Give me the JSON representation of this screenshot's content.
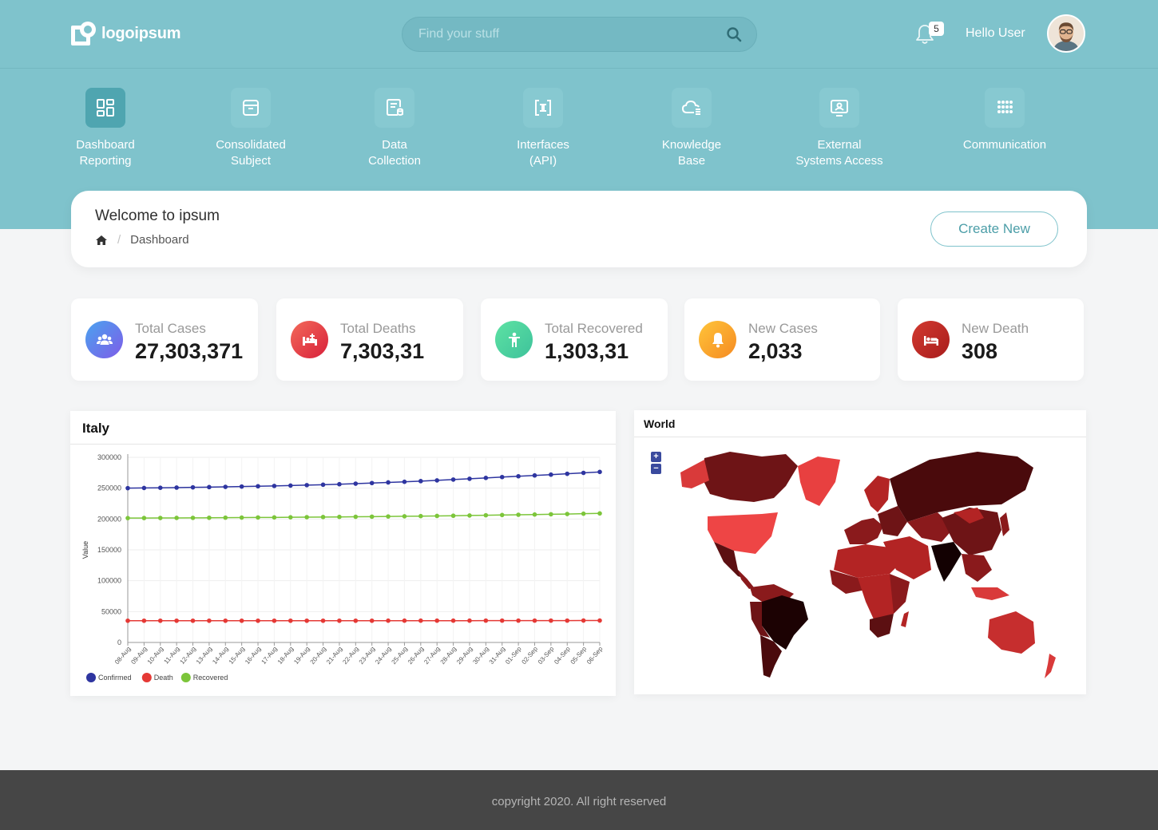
{
  "header": {
    "logo_text": "logoipsum",
    "search_placeholder": "Find your stuff",
    "notification_count": "5",
    "greeting": "Hello User"
  },
  "nav": {
    "items": [
      {
        "line1": "Dashboard",
        "line2": "Reporting",
        "icon": "dashboard-grid-icon",
        "active": true
      },
      {
        "line1": "Consolidated",
        "line2": "Subject",
        "icon": "archive-box-icon"
      },
      {
        "line1": "Data",
        "line2": "Collection",
        "icon": "data-document-icon"
      },
      {
        "line1": "Interfaces",
        "line2": "(API)",
        "icon": "api-interface-icon"
      },
      {
        "line1": "Knowledge",
        "line2": "Base",
        "icon": "cloud-list-icon"
      },
      {
        "line1": "External",
        "line2": "Systems Access",
        "icon": "monitor-user-icon"
      },
      {
        "line1": "Communication",
        "line2": "",
        "icon": "dot-grid-icon"
      }
    ]
  },
  "welcome": {
    "title": "Welcome to ipsum",
    "breadcrumb_current": "Dashboard",
    "breadcrumb_separator": "/",
    "create_button": "Create New"
  },
  "stats": [
    {
      "label": "Total Cases",
      "value": "27,303,371",
      "icon": "users-group-icon",
      "color": "#6a7cf0"
    },
    {
      "label": "Total Deaths",
      "value": "7,303,31",
      "icon": "hospital-bed-icon",
      "color": "#ea4a4a"
    },
    {
      "label": "Total Recovered",
      "value": "1,303,31",
      "icon": "person-standing-icon",
      "color": "#4fd1a5"
    },
    {
      "label": "New Cases",
      "value": "2,033",
      "icon": "bell-icon",
      "color": "#f7a233"
    },
    {
      "label": "New Death",
      "value": "308",
      "icon": "bed-icon",
      "color": "#c22a2a"
    }
  ],
  "italy_panel": {
    "title": "Italy"
  },
  "world_panel": {
    "title": "World",
    "zoom_in": "+",
    "zoom_out": "−"
  },
  "chart_data": {
    "type": "line",
    "title": "Italy",
    "xlabel": "",
    "ylabel": "Value",
    "ylim": [
      0,
      300000
    ],
    "yticks": [
      0,
      50000,
      100000,
      150000,
      200000,
      250000,
      300000
    ],
    "grid": true,
    "legend_position": "bottom-left",
    "x": [
      "08-Aug",
      "09-Aug",
      "10-Aug",
      "11-Aug",
      "12-Aug",
      "13-Aug",
      "14-Aug",
      "15-Aug",
      "16-Aug",
      "17-Aug",
      "18-Aug",
      "19-Aug",
      "20-Aug",
      "21-Aug",
      "22-Aug",
      "23-Aug",
      "24-Aug",
      "25-Aug",
      "26-Aug",
      "27-Aug",
      "28-Aug",
      "29-Aug",
      "30-Aug",
      "31-Aug",
      "01-Sep",
      "02-Sep",
      "03-Sep",
      "04-Sep",
      "05-Sep",
      "06-Sep"
    ],
    "series": [
      {
        "name": "Confirmed",
        "color": "#2e35a0",
        "values": [
          250000,
          250300,
          250600,
          250900,
          251300,
          251700,
          252100,
          252600,
          253100,
          253600,
          254200,
          254900,
          255600,
          256400,
          257300,
          258300,
          259300,
          260300,
          261400,
          262600,
          263900,
          265200,
          266600,
          268000,
          269300,
          270600,
          271900,
          273300,
          274800,
          276300
        ]
      },
      {
        "name": "Death",
        "color": "#e53935",
        "values": [
          35200,
          35200,
          35200,
          35200,
          35200,
          35200,
          35200,
          35200,
          35200,
          35200,
          35200,
          35200,
          35200,
          35200,
          35200,
          35200,
          35300,
          35300,
          35300,
          35300,
          35300,
          35300,
          35400,
          35400,
          35400,
          35400,
          35400,
          35400,
          35500,
          35500
        ]
      },
      {
        "name": "Recovered",
        "color": "#7cc53a",
        "values": [
          201500,
          201600,
          201700,
          201800,
          201900,
          202000,
          202200,
          202300,
          202500,
          202600,
          202800,
          203000,
          203200,
          203400,
          203600,
          203800,
          204100,
          204400,
          204700,
          205000,
          205300,
          205700,
          206100,
          206500,
          206900,
          207300,
          207700,
          208100,
          208600,
          209100
        ]
      }
    ]
  },
  "map_data": {
    "legend_colors": [
      "#3a0708",
      "#5c1012",
      "#8a1a1c",
      "#b32424",
      "#d93a3a",
      "#ef5350"
    ]
  },
  "footer": {
    "text": "copyright 2020. All right reserved"
  }
}
